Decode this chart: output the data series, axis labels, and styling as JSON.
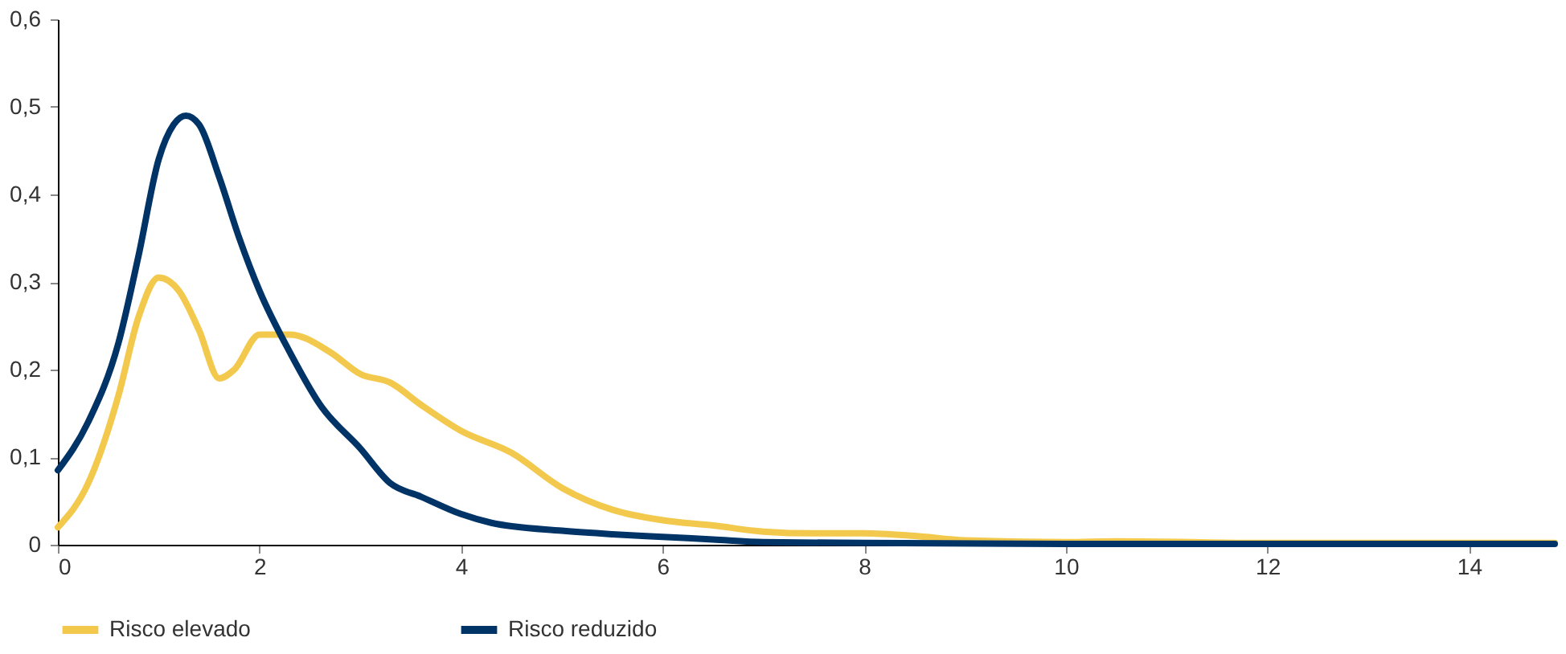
{
  "chart_data": {
    "type": "line",
    "xlim": [
      0,
      14.85
    ],
    "xticks": [
      0,
      2,
      4,
      6,
      8,
      10,
      12,
      14
    ],
    "ylim": [
      0,
      0.6
    ],
    "yticks": [
      {
        "value": 0,
        "label": "0"
      },
      {
        "value": 0.1,
        "label": "0,1"
      },
      {
        "value": 0.2,
        "label": "0,2"
      },
      {
        "value": 0.3,
        "label": "0,3"
      },
      {
        "value": 0.4,
        "label": "0,4"
      },
      {
        "value": 0.5,
        "label": "0,5"
      },
      {
        "value": 0.6,
        "label": "0,6"
      }
    ],
    "grid": false,
    "legend": "bottom",
    "marker": "none",
    "line_style": "solid",
    "series": [
      {
        "name": "Risco elevado",
        "color": "#f2c94c",
        "x": [
          0,
          0.3,
          0.6,
          0.8,
          1.0,
          1.2,
          1.4,
          1.6,
          1.75,
          2.0,
          2.3,
          2.7,
          3.0,
          3.3,
          3.6,
          4.0,
          4.5,
          5.0,
          5.5,
          6.0,
          6.5,
          7.0,
          7.5,
          8.0,
          8.5,
          9.0,
          10.0,
          10.5,
          12.0,
          14.85
        ],
        "values": [
          0.02,
          0.07,
          0.17,
          0.26,
          0.305,
          0.29,
          0.245,
          0.19,
          0.2,
          0.24,
          0.24,
          0.22,
          0.195,
          0.185,
          0.16,
          0.13,
          0.105,
          0.065,
          0.04,
          0.028,
          0.022,
          0.015,
          0.013,
          0.013,
          0.01,
          0.005,
          0.003,
          0.004,
          0.002,
          0.002
        ]
      },
      {
        "name": "Risco reduzido",
        "color": "#003366",
        "x": [
          0,
          0.3,
          0.6,
          0.8,
          1.0,
          1.15,
          1.27,
          1.4,
          1.6,
          1.8,
          2.0,
          2.3,
          2.6,
          3.0,
          3.3,
          3.6,
          4.0,
          4.3,
          5.0,
          5.5,
          6.0,
          6.5,
          7.0,
          8.0,
          10.0,
          12.0,
          14.85
        ],
        "values": [
          0.085,
          0.14,
          0.23,
          0.33,
          0.44,
          0.48,
          0.49,
          0.48,
          0.42,
          0.35,
          0.29,
          0.22,
          0.16,
          0.11,
          0.07,
          0.055,
          0.035,
          0.025,
          0.016,
          0.012,
          0.009,
          0.006,
          0.003,
          0.002,
          0.001,
          0.001,
          0.001
        ]
      }
    ]
  }
}
